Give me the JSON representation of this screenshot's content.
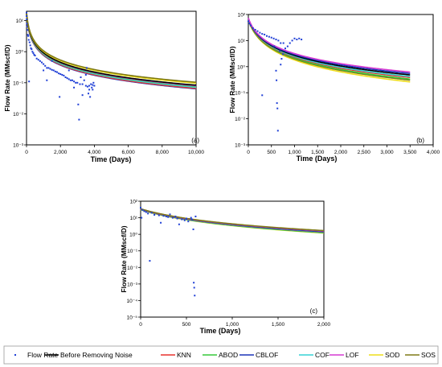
{
  "legend": [
    {
      "label": "Flow Rate",
      "color": "#1f3fd6",
      "kind": "marker"
    },
    {
      "label": "Before Removing Noise",
      "color": "#000000",
      "kind": "line"
    },
    {
      "label": "KNN",
      "color": "#e8322d",
      "kind": "line"
    },
    {
      "label": "ABOD",
      "color": "#37c83a",
      "kind": "line"
    },
    {
      "label": "CBLOF",
      "color": "#1b33b8",
      "kind": "line"
    },
    {
      "label": "COF",
      "color": "#36d2d6",
      "kind": "line"
    },
    {
      "label": "LOF",
      "color": "#d63ad2",
      "kind": "line"
    },
    {
      "label": "SOD",
      "color": "#eedd1a",
      "kind": "line"
    },
    {
      "label": "SOS",
      "color": "#7f7a16",
      "kind": "line"
    }
  ],
  "chart_data": [
    {
      "id": "a",
      "type": "scatter",
      "annotation": "(a)",
      "xlabel": "Time (Days)",
      "ylabel": "Flow Rate (MMscf/D)",
      "xlim": [
        0,
        10000
      ],
      "ylim": [
        0.001,
        20
      ],
      "yscale": "log",
      "xticks": [
        0,
        2000,
        4000,
        6000,
        8000,
        10000
      ],
      "xtick_labels": [
        "0",
        "2,000",
        "4,000",
        "6,000",
        "8,000",
        "10,000"
      ],
      "yticks": [
        0.001,
        0.01,
        0.1,
        1,
        10
      ],
      "ytick_labels": [
        "10⁻³",
        "10⁻²",
        "10⁻¹",
        "10⁰",
        "10¹"
      ],
      "fit_x_max": 10000,
      "decline_series": [
        {
          "name": "CBLOF",
          "qi": 15,
          "di": 0.015,
          "b": 0.9
        },
        {
          "name": "KNN",
          "qi": 15.5,
          "di": 0.015,
          "b": 0.9
        },
        {
          "name": "COF",
          "qi": 16,
          "di": 0.015,
          "b": 0.91
        },
        {
          "name": "ABOD",
          "qi": 16.5,
          "di": 0.015,
          "b": 0.92
        },
        {
          "name": "LOF",
          "qi": 16.5,
          "di": 0.0145,
          "b": 0.92
        },
        {
          "name": "Before Removing Noise",
          "qi": 17,
          "di": 0.015,
          "b": 0.93
        },
        {
          "name": "SOD",
          "qi": 18,
          "di": 0.015,
          "b": 0.95
        },
        {
          "name": "SOS",
          "qi": 18.5,
          "di": 0.015,
          "b": 0.96
        }
      ],
      "flow_rate_points": [
        [
          0,
          18
        ],
        [
          5,
          14
        ],
        [
          10,
          11
        ],
        [
          20,
          8
        ],
        [
          30,
          6.5
        ],
        [
          50,
          5
        ],
        [
          80,
          3.5
        ],
        [
          100,
          3.2
        ],
        [
          130,
          2.4
        ],
        [
          150,
          0.11
        ],
        [
          180,
          2.0
        ],
        [
          220,
          1.6
        ],
        [
          260,
          1.3
        ],
        [
          300,
          1.2
        ],
        [
          350,
          1.0
        ],
        [
          400,
          0.9
        ],
        [
          450,
          0.8
        ],
        [
          500,
          0.75
        ],
        [
          600,
          0.6
        ],
        [
          700,
          0.55
        ],
        [
          800,
          0.5
        ],
        [
          900,
          0.45
        ],
        [
          1000,
          0.4
        ],
        [
          1100,
          0.35
        ],
        [
          1200,
          0.3
        ],
        [
          1300,
          0.3
        ],
        [
          1400,
          0.28
        ],
        [
          1500,
          0.26
        ],
        [
          1600,
          0.25
        ],
        [
          1700,
          0.23
        ],
        [
          1800,
          0.22
        ],
        [
          1900,
          0.2
        ],
        [
          2000,
          0.19
        ],
        [
          1950,
          0.035
        ],
        [
          2100,
          0.18
        ],
        [
          2200,
          0.17
        ],
        [
          2300,
          0.15
        ],
        [
          2400,
          0.14
        ],
        [
          2500,
          0.13
        ],
        [
          2600,
          0.12
        ],
        [
          2700,
          0.12
        ],
        [
          2800,
          0.11
        ],
        [
          2900,
          0.1
        ],
        [
          3000,
          0.1
        ],
        [
          3050,
          0.02
        ],
        [
          3100,
          0.0065
        ],
        [
          3150,
          0.09
        ],
        [
          3200,
          0.15
        ],
        [
          3300,
          0.09
        ],
        [
          3400,
          0.12
        ],
        [
          3500,
          0.08
        ],
        [
          3550,
          0.3
        ],
        [
          3600,
          0.075
        ],
        [
          3650,
          0.045
        ],
        [
          3700,
          0.08
        ],
        [
          3750,
          0.035
        ],
        [
          3800,
          0.09
        ],
        [
          3850,
          0.07
        ],
        [
          3900,
          0.06
        ],
        [
          3950,
          0.1
        ],
        [
          4000,
          0.08
        ],
        [
          1000,
          0.25
        ],
        [
          1500,
          0.5
        ],
        [
          2500,
          0.25
        ],
        [
          3300,
          0.04
        ],
        [
          3500,
          0.18
        ],
        [
          3700,
          0.06
        ],
        [
          2800,
          0.07
        ],
        [
          3900,
          0.085
        ],
        [
          1200,
          0.12
        ]
      ]
    },
    {
      "id": "b",
      "type": "scatter",
      "annotation": "(b)",
      "xlabel": "Time (Days)",
      "ylabel": "Flow Rate (MMscf/D)",
      "xlim": [
        0,
        4000
      ],
      "ylim": [
        0.001,
        100
      ],
      "yscale": "log",
      "xticks": [
        0,
        500,
        1000,
        1500,
        2000,
        2500,
        3000,
        3500,
        4000
      ],
      "xtick_labels": [
        "0",
        "500",
        "1,000",
        "1,500",
        "2,000",
        "2,500",
        "3,000",
        "3,500",
        "4,000"
      ],
      "yticks": [
        0.001,
        0.01,
        0.1,
        1,
        10,
        100
      ],
      "ytick_labels": [
        "10⁻³",
        "10⁻²",
        "10⁻¹",
        "10⁰",
        "10¹",
        "10²"
      ],
      "fit_x_max": 3500,
      "decline_series": [
        {
          "name": "SOD",
          "qi": 60,
          "di": 0.012,
          "b": 0.6
        },
        {
          "name": "SOS",
          "qi": 62,
          "di": 0.012,
          "b": 0.62
        },
        {
          "name": "ABOD",
          "qi": 64,
          "di": 0.012,
          "b": 0.63
        },
        {
          "name": "KNN",
          "qi": 66,
          "di": 0.012,
          "b": 0.65
        },
        {
          "name": "COF",
          "qi": 68,
          "di": 0.012,
          "b": 0.66
        },
        {
          "name": "Before Removing Noise",
          "qi": 70,
          "di": 0.012,
          "b": 0.68
        },
        {
          "name": "CBLOF",
          "qi": 72,
          "di": 0.012,
          "b": 0.7
        },
        {
          "name": "LOF",
          "qi": 74,
          "di": 0.012,
          "b": 0.72
        }
      ],
      "flow_rate_points": [
        [
          0,
          55
        ],
        [
          20,
          45
        ],
        [
          50,
          38
        ],
        [
          100,
          30
        ],
        [
          150,
          26
        ],
        [
          200,
          23
        ],
        [
          250,
          20
        ],
        [
          300,
          18
        ],
        [
          350,
          17
        ],
        [
          400,
          15
        ],
        [
          450,
          14
        ],
        [
          500,
          13
        ],
        [
          550,
          12
        ],
        [
          600,
          11
        ],
        [
          650,
          10
        ],
        [
          700,
          8
        ],
        [
          720,
          2
        ],
        [
          750,
          3
        ],
        [
          800,
          5
        ],
        [
          850,
          6
        ],
        [
          900,
          8
        ],
        [
          950,
          10
        ],
        [
          1000,
          12
        ],
        [
          1050,
          11
        ],
        [
          1100,
          12
        ],
        [
          1150,
          11
        ],
        [
          300,
          0.08
        ],
        [
          600,
          0.7
        ],
        [
          610,
          0.3
        ],
        [
          620,
          0.04
        ],
        [
          630,
          0.025
        ],
        [
          640,
          0.0035
        ],
        [
          700,
          1.2
        ],
        [
          680,
          4
        ],
        [
          760,
          8
        ],
        [
          560,
          6
        ]
      ]
    },
    {
      "id": "c",
      "type": "scatter",
      "annotation": "(c)",
      "xlabel": "Time (Days)",
      "ylabel": "Flow Rate (MMscf/D)",
      "xlim": [
        0,
        2000
      ],
      "ylim": [
        1e-05,
        100
      ],
      "yscale": "log",
      "xticks": [
        0,
        500,
        1000,
        1500,
        2000
      ],
      "xtick_labels": [
        "0",
        "500",
        "1,000",
        "1,500",
        "2,000"
      ],
      "yticks": [
        1e-05,
        0.0001,
        0.001,
        0.01,
        0.1,
        1,
        10,
        100
      ],
      "ytick_labels": [
        "10⁻⁵",
        "10⁻⁴",
        "10⁻³",
        "10⁻²",
        "10⁻¹",
        "10⁰",
        "10¹",
        "10²"
      ],
      "fit_x_max": 2000,
      "decline_series": [
        {
          "name": "SOD",
          "qi": 30,
          "di": 0.004,
          "b": 0.5
        },
        {
          "name": "ABOD",
          "qi": 31,
          "di": 0.004,
          "b": 0.5
        },
        {
          "name": "KNN",
          "qi": 32,
          "di": 0.004,
          "b": 0.52
        },
        {
          "name": "COF",
          "qi": 32,
          "di": 0.004,
          "b": 0.53
        },
        {
          "name": "CBLOF",
          "qi": 33,
          "di": 0.004,
          "b": 0.53
        },
        {
          "name": "Before Removing Noise",
          "qi": 34,
          "di": 0.004,
          "b": 0.55
        },
        {
          "name": "LOF",
          "qi": 34,
          "di": 0.004,
          "b": 0.55
        },
        {
          "name": "SOS",
          "qi": 35,
          "di": 0.004,
          "b": 0.56
        }
      ],
      "flow_rate_points": [
        [
          0,
          40
        ],
        [
          20,
          30
        ],
        [
          40,
          25
        ],
        [
          60,
          22
        ],
        [
          80,
          18
        ],
        [
          100,
          0.025
        ],
        [
          120,
          20
        ],
        [
          150,
          15
        ],
        [
          200,
          14
        ],
        [
          220,
          5
        ],
        [
          250,
          13
        ],
        [
          280,
          12
        ],
        [
          300,
          11
        ],
        [
          320,
          16
        ],
        [
          350,
          10
        ],
        [
          380,
          12
        ],
        [
          400,
          9
        ],
        [
          420,
          4
        ],
        [
          450,
          8
        ],
        [
          480,
          7
        ],
        [
          500,
          9
        ],
        [
          520,
          6
        ],
        [
          550,
          10
        ],
        [
          560,
          8
        ],
        [
          575,
          2
        ],
        [
          580,
          0.0012
        ],
        [
          585,
          0.0006
        ],
        [
          590,
          0.0002
        ],
        [
          600,
          12
        ],
        [
          10,
          10
        ]
      ]
    }
  ]
}
